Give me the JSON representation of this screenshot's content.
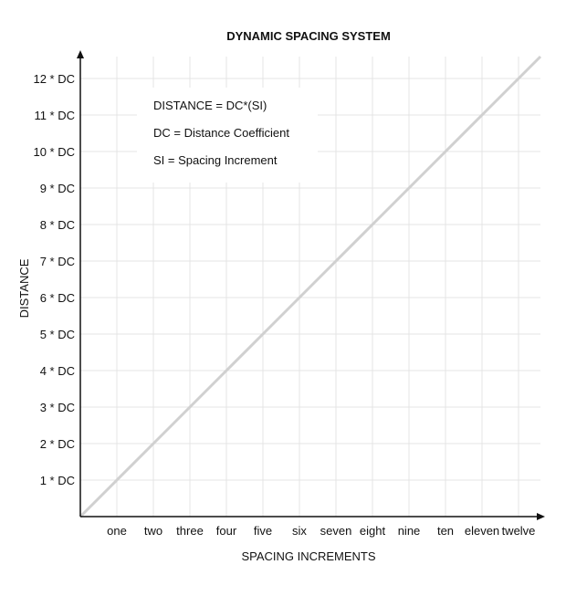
{
  "chart_data": {
    "type": "line",
    "title": "DYNAMIC SPACING SYSTEM",
    "xlabel": "SPACING INCREMENTS",
    "ylabel": "DISTANCE",
    "categories": [
      "one",
      "two",
      "three",
      "four",
      "five",
      "six",
      "seven",
      "eight",
      "nine",
      "ten",
      "eleven",
      "twelve"
    ],
    "x": [
      0,
      1,
      2,
      3,
      4,
      5,
      6,
      7,
      8,
      9,
      10,
      11,
      12,
      12.6
    ],
    "y": [
      0,
      1,
      2,
      3,
      4,
      5,
      6,
      7,
      8,
      9,
      10,
      11,
      12,
      12.6
    ],
    "y_tick_labels": [
      "1 * DC",
      "2 * DC",
      "3 * DC",
      "4 * DC",
      "5 * DC",
      "6 * DC",
      "7 * DC",
      "8 * DC",
      "9 * DC",
      "10 * DC",
      "11 * DC",
      "12 * DC"
    ],
    "xlim": [
      0,
      12.6
    ],
    "ylim": [
      0,
      12.6
    ],
    "grid": true,
    "line_color": "#d0d0d0",
    "grid_color": "#e4e4e4",
    "annotations": [
      "DISTANCE = DC*(SI)",
      "DC = Distance Coefficient",
      "SI = Spacing Increment"
    ]
  }
}
